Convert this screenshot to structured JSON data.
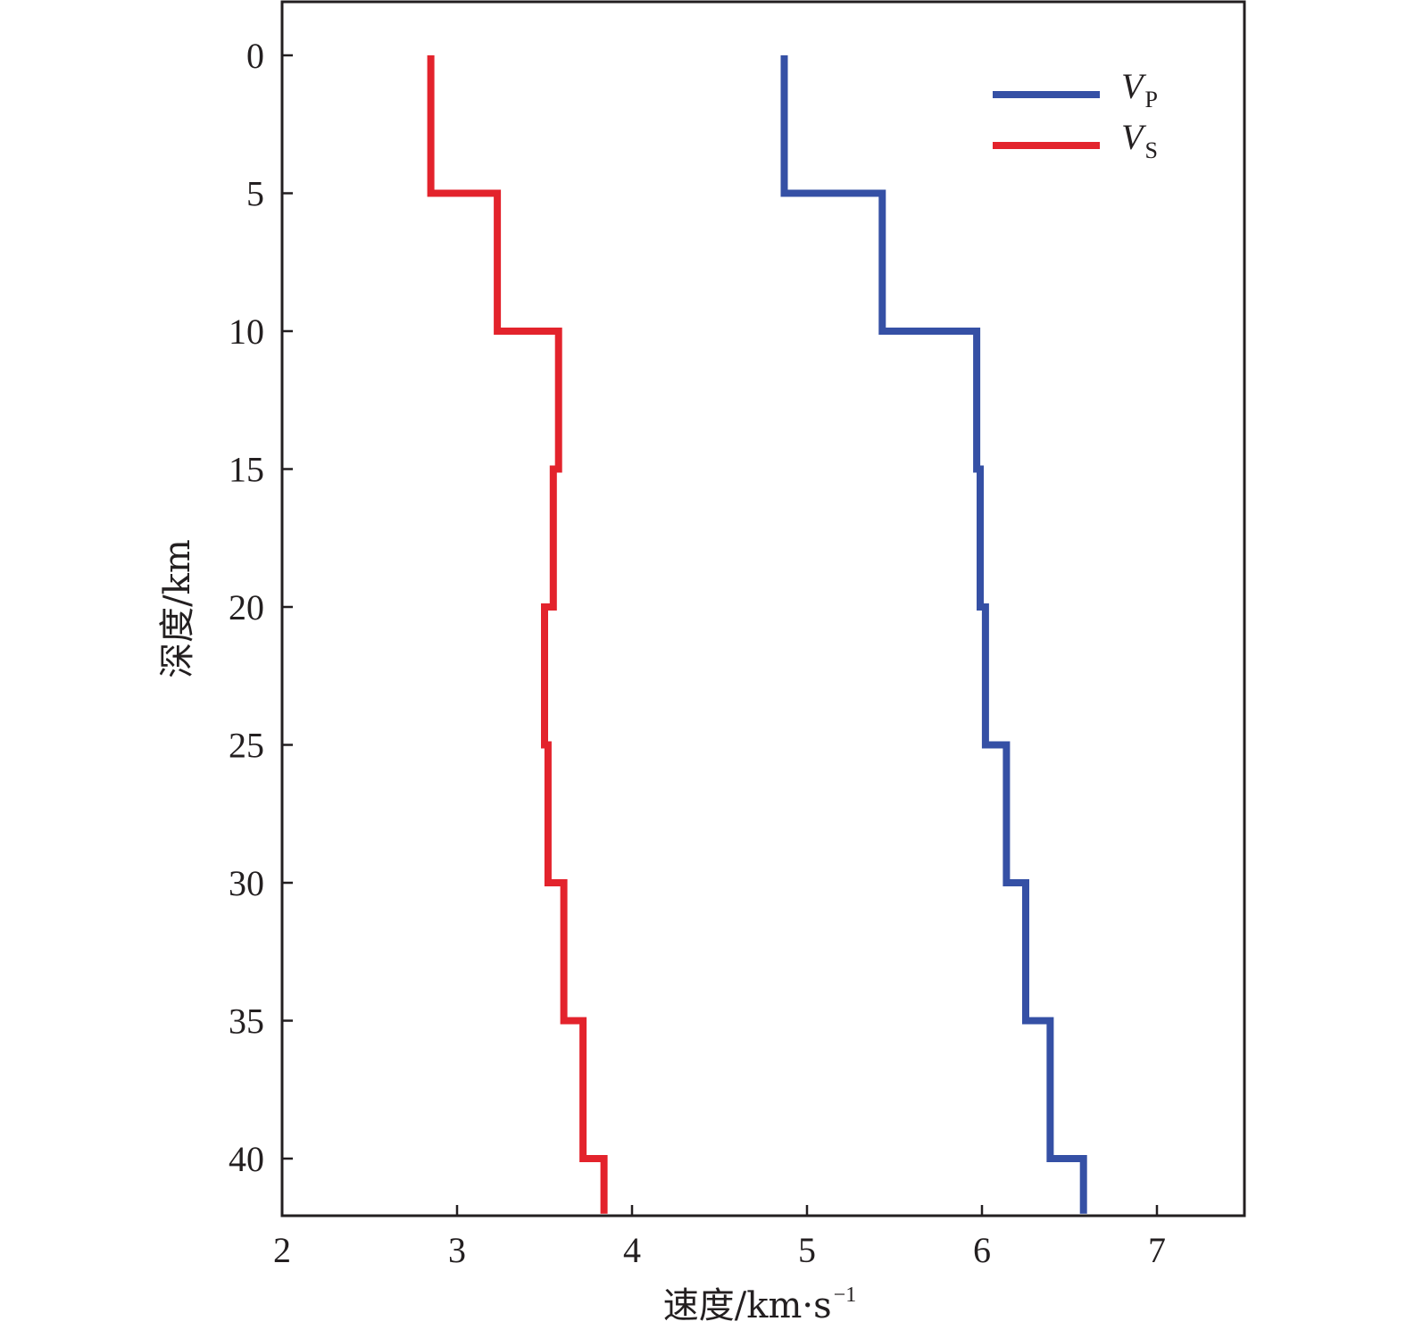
{
  "chart_data": {
    "type": "line",
    "xlabel": "速度/km·s",
    "xlabel_superscript": "−1",
    "ylabel": "深度/km",
    "xlim": [
      2,
      7.5
    ],
    "ylim": [
      0,
      42
    ],
    "y_inverted": true,
    "x_ticks": [
      2,
      3,
      4,
      5,
      6,
      7
    ],
    "x_tick_labels": [
      "2",
      "3",
      "4",
      "5",
      "6",
      "7"
    ],
    "y_ticks": [
      0,
      5,
      10,
      15,
      20,
      25,
      30,
      35,
      40
    ],
    "y_tick_labels": [
      "0",
      "5",
      "10",
      "15",
      "20",
      "25",
      "30",
      "35",
      "40"
    ],
    "grid": false,
    "legend_position": "top-right",
    "step_profile": true,
    "series": [
      {
        "name": "V",
        "name_subscript": "P",
        "color": "#3550a5",
        "layer_tops": [
          0,
          5,
          10,
          15,
          20,
          25,
          30,
          35,
          40
        ],
        "velocities": [
          4.87,
          5.43,
          5.97,
          5.99,
          6.02,
          6.14,
          6.25,
          6.39,
          6.58
        ],
        "bottom_depth": 42
      },
      {
        "name": "V",
        "name_subscript": "S",
        "color": "#e3232c",
        "layer_tops": [
          0,
          5,
          10,
          15,
          20,
          25,
          30,
          35,
          40
        ],
        "velocities": [
          2.85,
          3.23,
          3.58,
          3.55,
          3.5,
          3.52,
          3.61,
          3.72,
          3.84
        ],
        "bottom_depth": 42
      }
    ]
  }
}
